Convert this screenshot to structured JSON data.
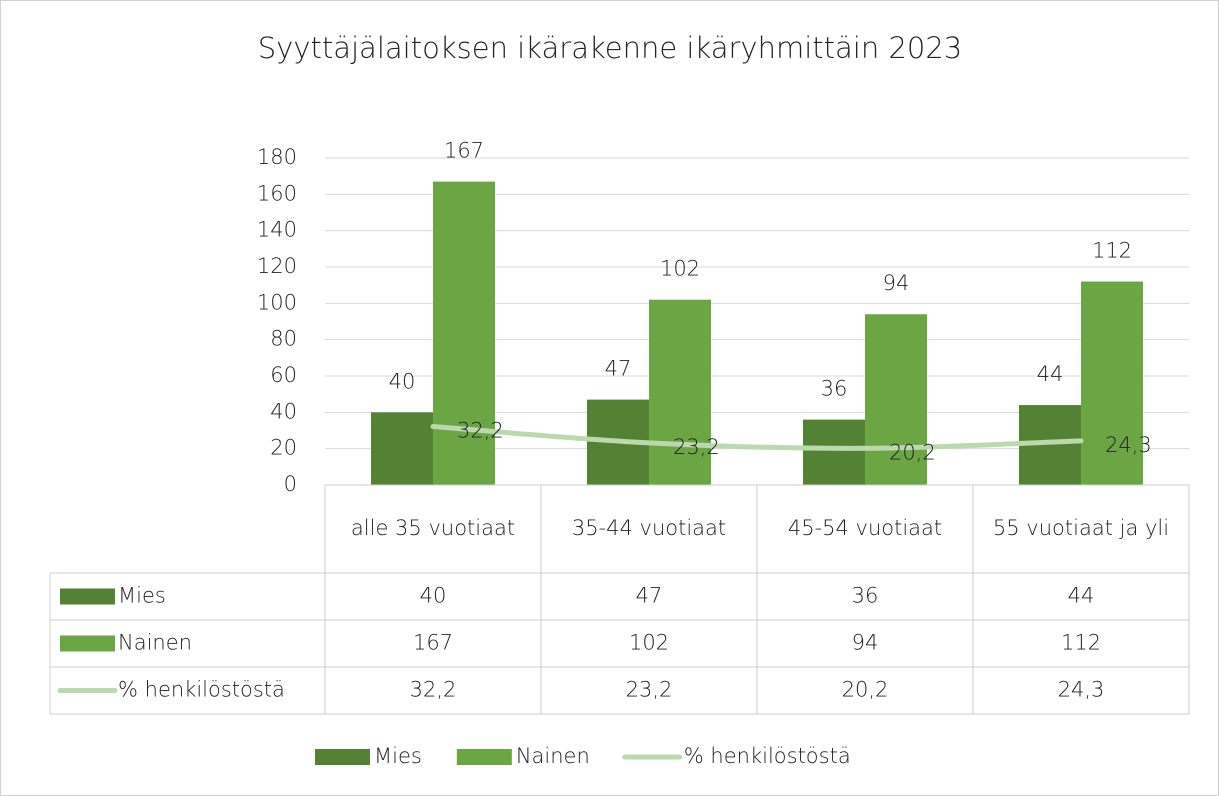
{
  "chart_data": {
    "type": "bar",
    "title": "Syyttäjälaitoksen ikärakenne ikäryhmittäin 2023",
    "categories": [
      "alle 35 vuotiaat",
      "35-44 vuotiaat",
      "45-54 vuotiaat",
      "55 vuotiaat ja yli"
    ],
    "series": [
      {
        "name": "Mies",
        "type": "bar",
        "color": "#548235",
        "values": [
          40,
          47,
          36,
          44
        ]
      },
      {
        "name": "Nainen",
        "type": "bar",
        "color": "#6ca544",
        "values": [
          167,
          102,
          94,
          112
        ]
      },
      {
        "name": "% henkilöstöstä",
        "type": "line",
        "color": "#bcd9ad",
        "values": [
          32.2,
          23.2,
          20.2,
          24.3
        ],
        "value_labels": [
          "32,2",
          "23,2",
          "20,2",
          "24,3"
        ]
      }
    ],
    "ylim": [
      0,
      180
    ],
    "yticks": [
      0,
      20,
      40,
      60,
      80,
      100,
      120,
      140,
      160,
      180
    ],
    "grid": true,
    "data_table": true,
    "legend": "bottom"
  }
}
